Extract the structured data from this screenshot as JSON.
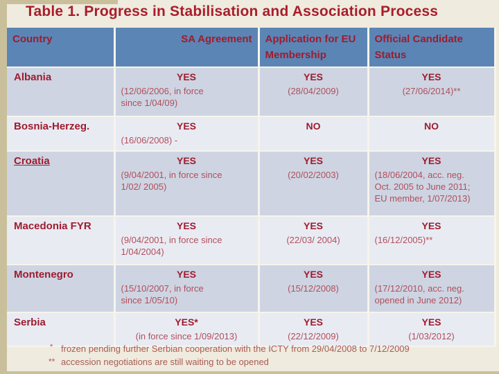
{
  "title": "Table 1. Progress in Stabilisation and Association Process",
  "colors": {
    "accent_red": "#A91D2B",
    "text_red": "#9E1C2E",
    "sub_red": "#B04F5B",
    "header_blue": "#5B85B5",
    "row_dark": "#CED4E2",
    "row_light": "#E9EBF3",
    "background": "#EFEBDE",
    "frame_tan": "#C9C09B",
    "separator": "#F6F4EC",
    "footnote_red": "#A85B55"
  },
  "table": {
    "columns": [
      "Country",
      "SA Agreement",
      "Application for EU Membership",
      "Official Candidate Status"
    ],
    "rows": [
      {
        "country": "Albania",
        "underline": false,
        "cells": [
          {
            "main": "YES",
            "sub": "(12/06/2006, in force\nsince 1/04/09)",
            "align": "left"
          },
          {
            "main": "YES",
            "sub": "(28/04/2009)",
            "align": "center"
          },
          {
            "main": "YES",
            "sub": "(27/06/2014)**",
            "align": "center"
          }
        ]
      },
      {
        "country": "Bosnia-Herzeg.",
        "underline": false,
        "cells": [
          {
            "main": "YES",
            "sub": "(16/06/2008) -",
            "align": "left"
          },
          {
            "main": "NO",
            "sub": "",
            "align": "center"
          },
          {
            "main": "NO",
            "sub": "",
            "align": "center"
          }
        ]
      },
      {
        "country": "Croatia",
        "underline": true,
        "cells": [
          {
            "main": "YES",
            "sub": "(9/04/2001, in force  since\n1/02/ 2005)",
            "align": "left"
          },
          {
            "main": "YES",
            "sub": "(20/02/2003)",
            "align": "center"
          },
          {
            "main": "YES",
            "sub": "(18/06/2004, acc. neg.\nOct. 2005 to June 2011;\nEU member, 1/07/2013)",
            "align": "left"
          }
        ]
      },
      {
        "country": "Macedonia FYR",
        "underline": false,
        "cells": [
          {
            "main": "YES",
            "sub": "(9/04/2001, in force  since\n1/04/2004)",
            "align": "left"
          },
          {
            "main": "YES",
            "sub": "(22/03/ 2004)",
            "align": "center"
          },
          {
            "main": "YES",
            "sub": "(16/12/2005)**",
            "align": "left"
          }
        ]
      },
      {
        "country": "Montenegro",
        "underline": false,
        "cells": [
          {
            "main": "YES",
            "sub": "(15/10/2007, in force\nsince 1/05/10)",
            "align": "left"
          },
          {
            "main": "YES",
            "sub": "(15/12/2008)",
            "align": "center"
          },
          {
            "main": "YES",
            "sub": "(17/12/2010, acc. neg.\nopened in June 2012)",
            "align": "left"
          }
        ]
      },
      {
        "country": "Serbia",
        "underline": false,
        "cells": [
          {
            "main": "YES*",
            "sub": "(in force  since 1/09/2013)",
            "align": "center"
          },
          {
            "main": "YES",
            "sub": "(22/12/2009)",
            "align": "center"
          },
          {
            "main": "YES",
            "sub": "(1/03/2012)",
            "align": "center"
          }
        ]
      }
    ]
  },
  "footnotes": [
    {
      "marker": "*",
      "text": "frozen pending further Serbian cooperation with the ICTY from 29/04/2008 to 7/12/2009"
    },
    {
      "marker": "**",
      "text": "accession negotiations are still waiting to be opened"
    }
  ]
}
